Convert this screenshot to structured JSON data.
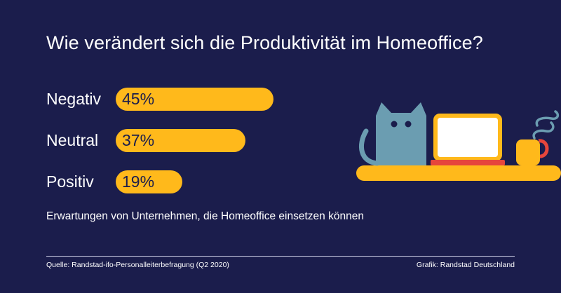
{
  "chart_data": {
    "type": "bar",
    "orientation": "horizontal",
    "title": "Wie verändert sich die Produktivität im Homeoffice?",
    "subtitle": "Erwartungen von Unternehmen, die Homeoffice einsetzen können",
    "categories": [
      "Negativ",
      "Neutral",
      "Positiv"
    ],
    "values": [
      45,
      37,
      19
    ],
    "value_labels": [
      "45%",
      "37%",
      "19%"
    ],
    "unit": "%",
    "xlim": [
      0,
      100
    ],
    "grid": false,
    "legend": "none"
  },
  "footer": {
    "source": "Quelle: Randstad-ifo-Personalleiterbefragung (Q2 2020)",
    "credit": "Grafik: Randstad Deutschland"
  },
  "colors": {
    "background": "#1b1d4c",
    "bar": "#ffb91b",
    "text": "#ffffff",
    "bar_text": "#1b1d4c",
    "cat": "#6b9db1",
    "laptop": "#ffb91b",
    "keyboard": "#e6463c",
    "mug": "#ffb91b",
    "steam": "#6b9db1"
  },
  "illustration": {
    "icons": [
      "cat-icon",
      "laptop-icon",
      "coffee-mug-icon",
      "shelf-icon"
    ]
  }
}
